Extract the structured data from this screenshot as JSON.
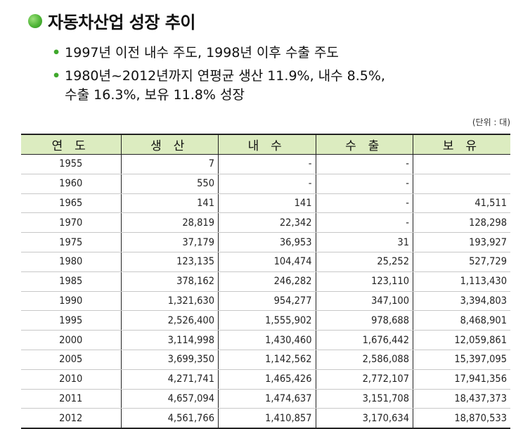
{
  "title": "자동차산업 성장 추이",
  "bullets": [
    [
      "1997년 이전 내수 주도, 1998년 이후 수출 주도"
    ],
    [
      "1980년~2012년까지 연평균 생산 11.9%, 내수 8.5%,",
      "수출 16.3%, 보유 11.8% 성장"
    ]
  ],
  "unit": "(단위 : 대)",
  "table": {
    "headers": [
      "연 도",
      "생 산",
      "내 수",
      "수 출",
      "보 유"
    ],
    "rows": [
      [
        "1955",
        "7",
        "-",
        "-",
        ""
      ],
      [
        "1960",
        "550",
        "-",
        "-",
        ""
      ],
      [
        "1965",
        "141",
        "141",
        "-",
        "41,511"
      ],
      [
        "1970",
        "28,819",
        "22,342",
        "-",
        "128,298"
      ],
      [
        "1975",
        "37,179",
        "36,953",
        "31",
        "193,927"
      ],
      [
        "1980",
        "123,135",
        "104,474",
        "25,252",
        "527,729"
      ],
      [
        "1985",
        "378,162",
        "246,282",
        "123,110",
        "1,113,430"
      ],
      [
        "1990",
        "1,321,630",
        "954,277",
        "347,100",
        "3,394,803"
      ],
      [
        "1995",
        "2,526,400",
        "1,555,902",
        "978,688",
        "8,468,901"
      ],
      [
        "2000",
        "3,114,998",
        "1,430,460",
        "1,676,442",
        "12,059,861"
      ],
      [
        "2005",
        "3,699,350",
        "1,142,562",
        "2,586,088",
        "15,397,095"
      ],
      [
        "2010",
        "4,271,741",
        "1,465,426",
        "2,772,107",
        "17,941,356"
      ],
      [
        "2011",
        "4,657,094",
        "1,474,637",
        "3,151,708",
        "18,437,373"
      ],
      [
        "2012",
        "4,561,766",
        "1,410,857",
        "3,170,634",
        "18,870,533"
      ]
    ]
  }
}
